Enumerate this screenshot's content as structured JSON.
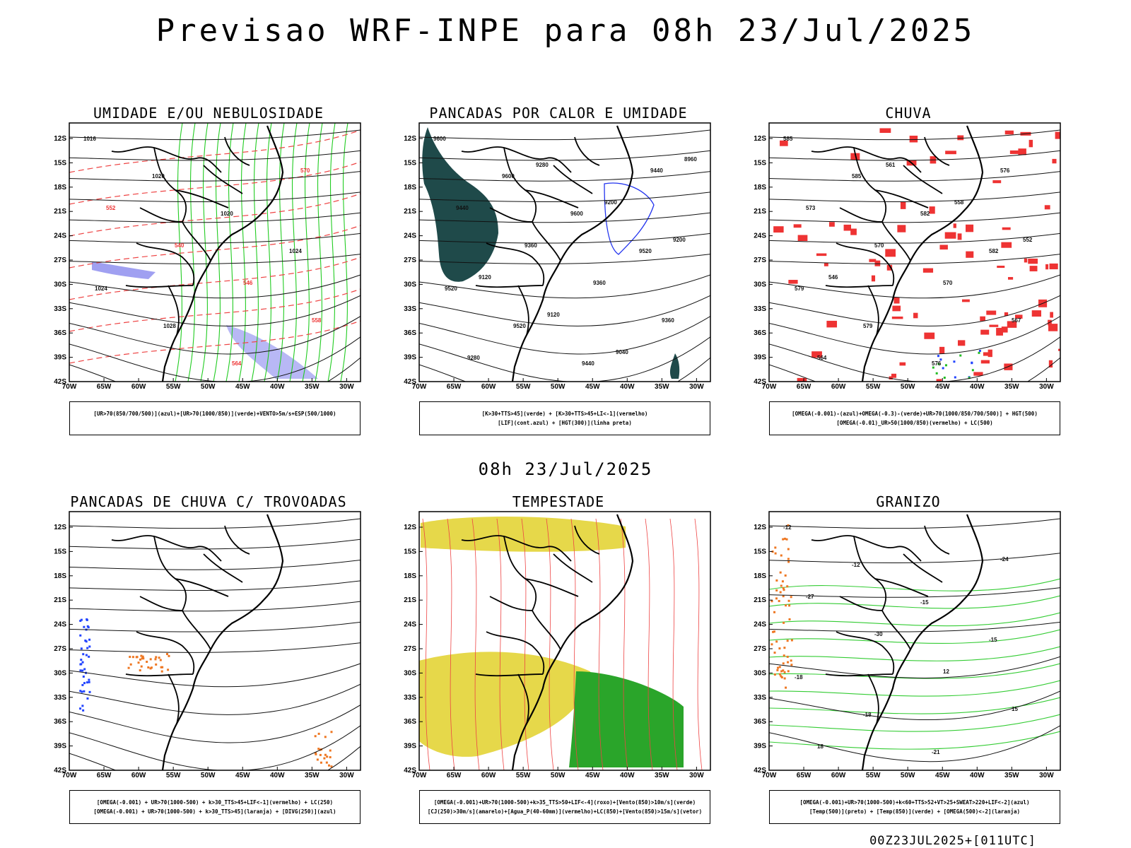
{
  "header": {
    "title": "Previsao WRF-INPE  para 08h 23/Jul/2025",
    "middle": "08h 23/Jul/2025",
    "footer": "00Z23JUL2025+[011UTC]"
  },
  "axes": {
    "lat": [
      "12S",
      "15S",
      "18S",
      "21S",
      "24S",
      "27S",
      "30S",
      "33S",
      "36S",
      "39S",
      "42S"
    ],
    "lon": [
      "70W",
      "65W",
      "60W",
      "55W",
      "50W",
      "45W",
      "40W",
      "35W",
      "30W"
    ]
  },
  "panels": [
    {
      "title": "UMIDADE E/OU NEBULOSIDADE",
      "legend": [
        "[UR>70(850/700/500)](azul)+[UR>70(1000/850)](verde)+VENTO>5m/s+ESP(500/1000)"
      ],
      "contour_labels": [
        "1016",
        "1020",
        "1020",
        "1024",
        "1024",
        "1028",
        "564",
        "570",
        "552",
        "540",
        "546",
        "558"
      ]
    },
    {
      "title": "PANCADAS POR CALOR E UMIDADE",
      "legend": [
        "[K>30+TTS>45](verde) + [K>30+TTS>45+LI<-1](vermelho)",
        "[LIF](cont.azul) + [HGT(300)](linha preta)"
      ],
      "contour_labels": [
        "9600",
        "9600",
        "9600",
        "9520",
        "9520",
        "9520",
        "9440",
        "9440",
        "9440",
        "9360",
        "9360",
        "9360",
        "9280",
        "9280",
        "9200",
        "9200",
        "9120",
        "9120",
        "9040",
        "8960"
      ]
    },
    {
      "title": "CHUVA",
      "legend": [
        "[OMEGA(-0.001)-(azul)+OMEGA(-0.3)-(verde)+UR>70(1000/850/700/500)] + HGT(500)",
        "[OMEGA(-0.01)_UR>50(1000/850)(vermelho) + LC(500)"
      ],
      "contour_labels": [
        "585",
        "585",
        "582",
        "582",
        "579",
        "579",
        "576",
        "576",
        "573",
        "570",
        "570",
        "567",
        "564",
        "561",
        "558",
        "552",
        "546"
      ]
    },
    {
      "title": "PANCADAS DE CHUVA C/ TROVOADAS",
      "legend": [
        "[OMEGA(-0.001) + UR>70(1000-500) + k>30_TTS>45+LIF<-1](vermelho) + LC(250)",
        "[OMEGA(-0.001) + UR>70(1000-500) + k>30_TTS>45](laranja) + [DIVG(250)](azul)"
      ],
      "contour_labels": []
    },
    {
      "title": "TEMPESTADE",
      "legend": [
        "[OMEGA(-0.001)+UR>70(1000-500)+k>35_TTS>50+LIF<-4](roxo)+[Vento(850)>10m/s](verde)",
        "[CJ(250)>30m/s](amarelo)+[Agua_P(40-60mm)](vermelho)+LC(850)+[Vento(850)>15m/s](vetor)"
      ],
      "contour_labels": []
    },
    {
      "title": "GRANIZO",
      "legend": [
        "[OMEGA(-0.001)+UR>70(1000-500)+k<60+TTS>52+VT>25+SWEAT>220+LIF<-2](azul)",
        "[Temp(500)](preto) + [Temp(850)](verde) + [OMEGA(500)<-2](laranja)"
      ],
      "contour_labels": [
        "-12",
        "-12",
        "-15",
        "-15",
        "-18",
        "-18",
        "-21",
        "-24",
        "-27",
        "-30",
        "12",
        "15",
        "18"
      ]
    }
  ]
}
